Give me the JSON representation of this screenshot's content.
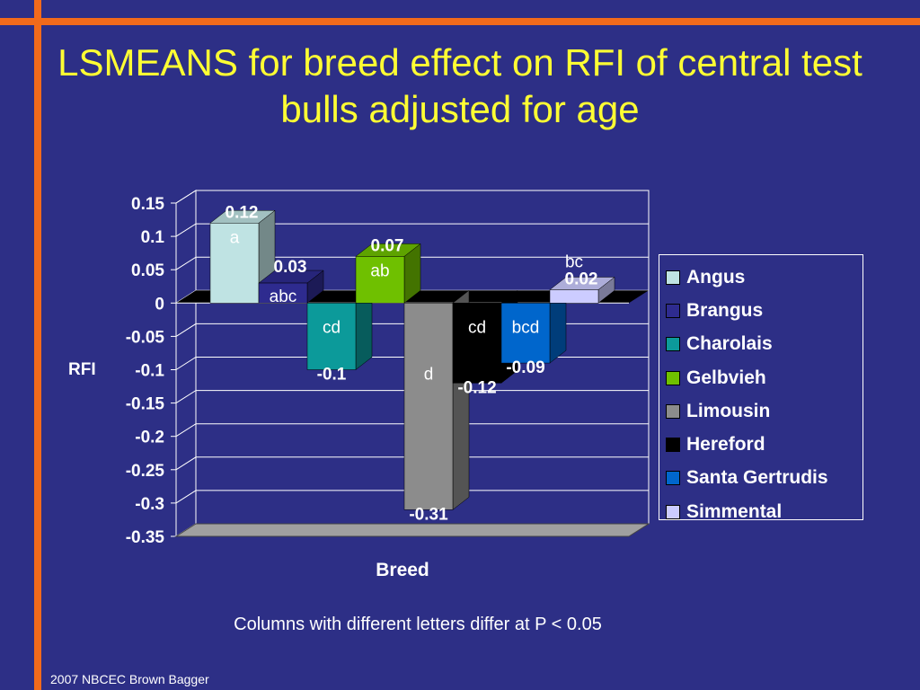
{
  "slide": {
    "title": "LSMEANS for breed effect on RFI of central test bulls adjusted for age",
    "caption": "Columns with different letters differ at P < 0.05",
    "footer": "2007 NBCEC Brown Bagger",
    "accent_color": "#f26a1b",
    "background_color": "#2d2f86",
    "title_color": "#ffff33"
  },
  "chart_data": {
    "type": "bar",
    "title": "",
    "xlabel": "Breed",
    "ylabel": "RFI",
    "ylim": [
      -0.35,
      0.15
    ],
    "yticks": [
      "0.15",
      "0.1",
      "0.05",
      "0",
      "-0.05",
      "-0.1",
      "-0.15",
      "-0.2",
      "-0.25",
      "-0.3",
      "-0.35"
    ],
    "grid": true,
    "legend_position": "right",
    "series": [
      {
        "name": "Angus",
        "value": 0.12,
        "value_label": "0.12",
        "letter": "a",
        "color": "#bfe3e3"
      },
      {
        "name": "Brangus",
        "value": 0.03,
        "value_label": "0.03",
        "letter": "abc",
        "color": "#2e2b8f"
      },
      {
        "name": "Charolais",
        "value": -0.1,
        "value_label": "-0.1",
        "letter": "cd",
        "color": "#0c9a9a"
      },
      {
        "name": "Gelbvieh",
        "value": 0.07,
        "value_label": "0.07",
        "letter": "ab",
        "color": "#6fc000"
      },
      {
        "name": "Limousin",
        "value": -0.31,
        "value_label": "-0.31",
        "letter": "d",
        "color": "#8c8c8c"
      },
      {
        "name": "Hereford",
        "value": -0.12,
        "value_label": "-0.12",
        "letter": "cd",
        "color": "#000000"
      },
      {
        "name": "Santa Gertrudis",
        "value": -0.09,
        "value_label": "-0.09",
        "letter": "bcd",
        "color": "#0066cc"
      },
      {
        "name": "Simmental",
        "value": 0.02,
        "value_label": "0.02",
        "letter": "bc",
        "color": "#ccccff"
      }
    ]
  }
}
